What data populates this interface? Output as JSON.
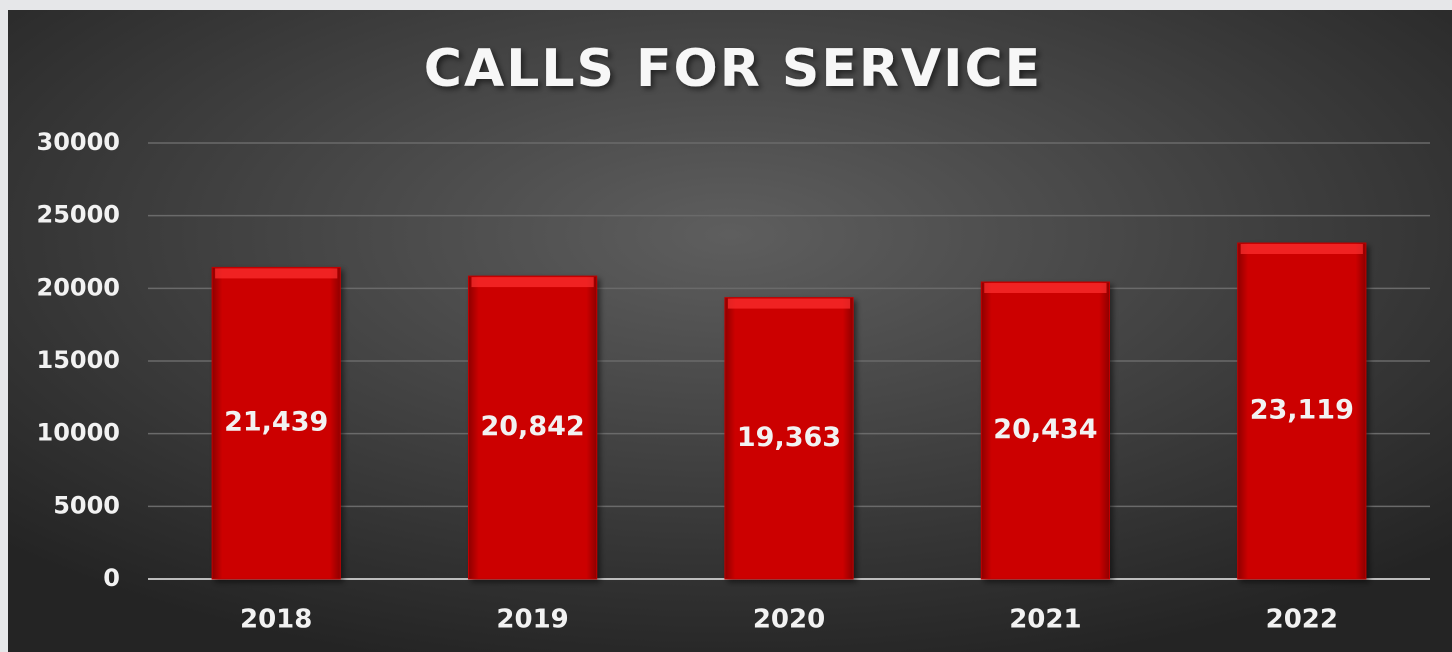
{
  "chart_data": {
    "type": "bar",
    "title": "CALLS FOR SERVICE",
    "categories": [
      "2018",
      "2019",
      "2020",
      "2021",
      "2022"
    ],
    "values": [
      21439,
      20842,
      19363,
      20434,
      23119
    ],
    "value_labels": [
      "21,439",
      "20,842",
      "19,363",
      "20,434",
      "23,119"
    ],
    "color": "#c00000",
    "ylim": [
      0,
      30000
    ],
    "yticks": [
      0,
      5000,
      10000,
      15000,
      20000,
      25000,
      30000
    ],
    "grid": true
  }
}
